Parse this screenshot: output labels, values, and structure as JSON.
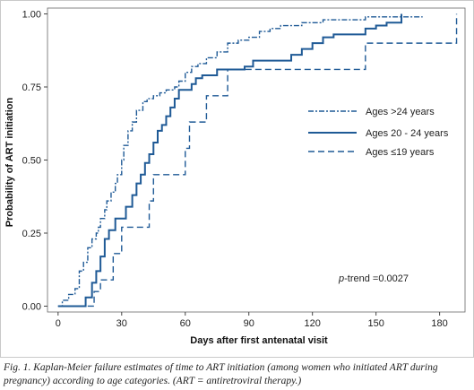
{
  "caption": "Fig. 1. Kaplan-Meier failure estimates of time to ART initiation (among women who initiated ART during pregnancy) according to age categories. (ART = antiretroviral therapy.)",
  "chart_data": {
    "type": "line",
    "title": "",
    "xlabel": "Days after first antenatal visit",
    "ylabel": "Probability of ART initiation",
    "xlim": [
      -5,
      192
    ],
    "ylim": [
      -0.02,
      1.02
    ],
    "x_ticks": [
      "0",
      "30",
      "60",
      "90",
      "120",
      "150",
      "180"
    ],
    "y_ticks": [
      "0.00",
      "0.25",
      "0.50",
      "0.75",
      "1.00"
    ],
    "legend_placement": "right",
    "annotation": {
      "prefix": "p",
      "text": "-trend =0.0027"
    },
    "series": [
      {
        "name": "Ages >24 years",
        "style": "dash-dot",
        "color": "#1f5a96",
        "x": [
          0,
          2,
          5,
          8,
          10,
          12,
          14,
          16,
          18,
          19,
          20,
          22,
          23,
          25,
          27,
          28,
          30,
          31,
          33,
          35,
          37,
          40,
          42,
          45,
          48,
          51,
          55,
          57,
          60,
          63,
          66,
          70,
          75,
          80,
          85,
          90,
          95,
          100,
          105,
          110,
          115,
          120,
          125,
          130,
          135,
          145,
          160,
          172
        ],
        "y": [
          0.0,
          0.02,
          0.04,
          0.06,
          0.12,
          0.15,
          0.2,
          0.23,
          0.25,
          0.27,
          0.3,
          0.33,
          0.36,
          0.39,
          0.42,
          0.45,
          0.5,
          0.55,
          0.6,
          0.63,
          0.67,
          0.7,
          0.71,
          0.72,
          0.73,
          0.74,
          0.75,
          0.77,
          0.8,
          0.82,
          0.83,
          0.85,
          0.87,
          0.9,
          0.91,
          0.92,
          0.94,
          0.95,
          0.96,
          0.96,
          0.97,
          0.97,
          0.98,
          0.98,
          0.98,
          0.99,
          0.99,
          0.99
        ]
      },
      {
        "name": "Ages 20 - 24 years",
        "style": "solid",
        "color": "#1f5a96",
        "x": [
          0,
          13,
          16,
          18,
          20,
          22,
          24,
          27,
          30,
          32,
          35,
          37,
          39,
          41,
          43,
          45,
          47,
          49,
          51,
          53,
          55,
          57,
          60,
          63,
          65,
          68,
          75,
          80,
          85,
          88,
          92,
          100,
          110,
          115,
          120,
          125,
          130,
          145,
          150,
          155,
          162
        ],
        "y": [
          0.0,
          0.03,
          0.08,
          0.12,
          0.17,
          0.23,
          0.26,
          0.3,
          0.3,
          0.34,
          0.38,
          0.42,
          0.45,
          0.49,
          0.52,
          0.56,
          0.6,
          0.62,
          0.65,
          0.68,
          0.71,
          0.74,
          0.74,
          0.76,
          0.78,
          0.79,
          0.81,
          0.81,
          0.81,
          0.82,
          0.84,
          0.84,
          0.86,
          0.88,
          0.9,
          0.92,
          0.93,
          0.95,
          0.96,
          0.97,
          1.0
        ]
      },
      {
        "name": "Ages ≤19 years",
        "style": "dashed",
        "color": "#1f5a96",
        "x": [
          0,
          17,
          20,
          26,
          30,
          33,
          43,
          45,
          48,
          55,
          60,
          62,
          68,
          70,
          75,
          80,
          93,
          110,
          143,
          145,
          186,
          188
        ],
        "y": [
          0.0,
          0.05,
          0.09,
          0.18,
          0.27,
          0.27,
          0.36,
          0.45,
          0.45,
          0.45,
          0.54,
          0.63,
          0.63,
          0.72,
          0.72,
          0.81,
          0.81,
          0.81,
          0.81,
          0.9,
          0.9,
          1.0
        ]
      }
    ]
  }
}
